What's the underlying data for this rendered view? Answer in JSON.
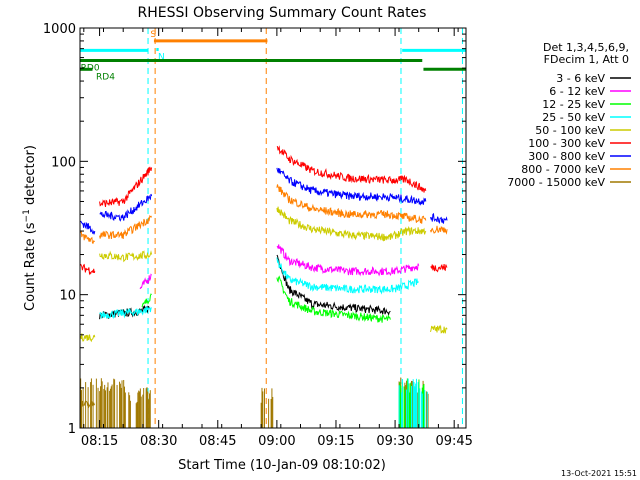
{
  "chart_data": {
    "type": "line",
    "title": "RHESSI Observing Summary Count Rates",
    "xlabel": "Start Time (10-Jan-09 08:10:02)",
    "ylabel_pre": "Count Rate (s",
    "ylabel_sup": "−1",
    "ylabel_mid": " detector",
    "ylabel_post": ")",
    "x_range_min": [
      8.1672,
      9.8
    ],
    "y_range": [
      1,
      1000
    ],
    "y_scale": "log",
    "x_ticks": [
      {
        "t": 8.25,
        "label": "08:15"
      },
      {
        "t": 8.5,
        "label": "08:30"
      },
      {
        "t": 8.75,
        "label": "08:45"
      },
      {
        "t": 9.0,
        "label": "09:00"
      },
      {
        "t": 9.25,
        "label": "09:15"
      },
      {
        "t": 9.5,
        "label": "09:30"
      },
      {
        "t": 9.75,
        "label": "09:45"
      }
    ],
    "y_ticks": [
      {
        "v": 1,
        "label": "1"
      },
      {
        "v": 10,
        "label": "10"
      },
      {
        "v": 100,
        "label": "100"
      },
      {
        "v": 1000,
        "label": "1000"
      }
    ],
    "legend_header": [
      "Det 1,3,4,5,6,9,",
      "FDecim 1, Att 0"
    ],
    "legend_placement": "right",
    "footer_date": "13-Oct-2021 15:51",
    "series": [
      {
        "name": "3 - 6 keV",
        "color": "#000000",
        "segs": [
          [
            [
              8.25,
              7
            ],
            [
              8.43,
              7.5
            ],
            [
              8.46,
              8
            ]
          ],
          [
            [
              9.0,
              20
            ],
            [
              9.05,
              11
            ],
            [
              9.15,
              8.5
            ],
            [
              9.3,
              8
            ],
            [
              9.48,
              7.5
            ]
          ]
        ]
      },
      {
        "name": "6 - 12 keV",
        "color": "#ff00ff",
        "segs": [
          [
            [
              8.42,
              11
            ],
            [
              8.47,
              14
            ]
          ],
          [
            [
              9.0,
              24
            ],
            [
              9.05,
              18
            ],
            [
              9.15,
              16
            ],
            [
              9.3,
              15
            ],
            [
              9.5,
              15
            ],
            [
              9.6,
              16.5
            ]
          ]
        ]
      },
      {
        "name": "12 - 25 keV",
        "color": "#00ff00",
        "segs": [
          [
            [
              8.43,
              8
            ],
            [
              8.47,
              10
            ]
          ],
          [
            [
              9.0,
              14
            ],
            [
              9.05,
              9
            ],
            [
              9.15,
              7.5
            ],
            [
              9.3,
              7
            ],
            [
              9.48,
              6.5
            ]
          ]
        ]
      },
      {
        "name": "25 - 50 keV",
        "color": "#00ffff",
        "segs": [
          [
            [
              8.25,
              7
            ],
            [
              8.43,
              7.5
            ],
            [
              8.47,
              8
            ]
          ],
          [
            [
              9.0,
              18
            ],
            [
              9.05,
              13
            ],
            [
              9.15,
              11.5
            ],
            [
              9.3,
              11
            ],
            [
              9.5,
              11
            ],
            [
              9.6,
              12.5
            ]
          ]
        ]
      },
      {
        "name": "50 - 100 keV",
        "color": "#cccc00",
        "segs": [
          [
            [
              8.17,
              4.8
            ],
            [
              8.23,
              4.8
            ]
          ],
          [
            [
              8.25,
              20
            ],
            [
              8.35,
              19
            ],
            [
              8.47,
              20
            ]
          ],
          [
            [
              9.0,
              45
            ],
            [
              9.05,
              36
            ],
            [
              9.15,
              31
            ],
            [
              9.3,
              28
            ],
            [
              9.48,
              27
            ],
            [
              9.55,
              30
            ],
            [
              9.63,
              30
            ]
          ],
          [
            [
              9.65,
              5.5
            ],
            [
              9.72,
              5.5
            ]
          ]
        ]
      },
      {
        "name": "100 - 300 keV",
        "color": "#ff0000",
        "segs": [
          [
            [
              8.17,
              16
            ],
            [
              8.23,
              15
            ]
          ],
          [
            [
              8.25,
              48
            ],
            [
              8.35,
              50
            ],
            [
              8.47,
              90
            ]
          ],
          [
            [
              9.0,
              130
            ],
            [
              9.05,
              105
            ],
            [
              9.15,
              85
            ],
            [
              9.3,
              75
            ],
            [
              9.48,
              72
            ],
            [
              9.55,
              73
            ],
            [
              9.63,
              60
            ]
          ],
          [
            [
              9.65,
              16
            ],
            [
              9.72,
              16
            ]
          ]
        ]
      },
      {
        "name": "300 - 800 keV",
        "color": "#0000ff",
        "segs": [
          [
            [
              8.17,
              35
            ],
            [
              8.23,
              30
            ]
          ],
          [
            [
              8.25,
              40
            ],
            [
              8.35,
              38
            ],
            [
              8.47,
              55
            ]
          ],
          [
            [
              9.0,
              88
            ],
            [
              9.05,
              72
            ],
            [
              9.15,
              60
            ],
            [
              9.3,
              55
            ],
            [
              9.48,
              54
            ],
            [
              9.55,
              52
            ],
            [
              9.63,
              50
            ]
          ],
          [
            [
              9.65,
              38
            ],
            [
              9.72,
              36
            ]
          ]
        ]
      },
      {
        "name": "800 - 7000 keV",
        "color": "#ff8000",
        "segs": [
          [
            [
              8.17,
              28
            ],
            [
              8.23,
              25
            ]
          ],
          [
            [
              8.25,
              28
            ],
            [
              8.35,
              28
            ],
            [
              8.47,
              38
            ]
          ],
          [
            [
              9.0,
              65
            ],
            [
              9.05,
              52
            ],
            [
              9.15,
              44
            ],
            [
              9.3,
              40
            ],
            [
              9.48,
              40
            ],
            [
              9.55,
              38
            ],
            [
              9.63,
              36
            ]
          ],
          [
            [
              9.65,
              31
            ],
            [
              9.72,
              31
            ]
          ]
        ]
      },
      {
        "name": "7000 - 15000 keV",
        "color": "#a07800",
        "segs": [
          [
            [
              8.17,
              1.5
            ],
            [
              8.23,
              1.5
            ]
          ]
        ]
      }
    ],
    "spikes": [
      {
        "color": "#a07800",
        "t0": 8.17,
        "t1": 8.36,
        "v": 2
      },
      {
        "color": "#a07800",
        "t0": 8.37,
        "t1": 8.47,
        "v": 1.7
      },
      {
        "color": "#a07800",
        "t0": 8.93,
        "t1": 8.985,
        "v": 1.7
      },
      {
        "color": "#a07800",
        "t0": 9.51,
        "t1": 9.64,
        "v": 2
      },
      {
        "color": "#00ff00",
        "t0": 9.51,
        "t1": 9.64,
        "v": 2
      },
      {
        "color": "#00ffff",
        "t0": 9.51,
        "t1": 9.64,
        "v": 2
      }
    ],
    "flag_bars": [
      {
        "color": "#00ffff",
        "v": 680,
        "t0": 8.1672,
        "t1": 8.455,
        "label": "",
        "dash_at": 8.455
      },
      {
        "color": "#ff8000",
        "v": 800,
        "t0": 8.48,
        "t1": 8.96,
        "label": "S",
        "label_t": 8.465,
        "dash_at": 8.48,
        "dash_end": 8.96
      },
      {
        "color": "#00ffff",
        "v": 690,
        "t0": 8.49,
        "t1": 8.5,
        "label": "N",
        "label_t": 8.497
      },
      {
        "color": "#008000",
        "v": 570,
        "t0": 8.1672,
        "t1": 9.615,
        "label": "RD0",
        "label_t": 8.17
      },
      {
        "color": "#008000",
        "v": 490,
        "t0": 8.1672,
        "t1": 8.22,
        "label": "RD4",
        "label_t": 8.235
      },
      {
        "color": "#00ffff",
        "v": 680,
        "t0": 9.53,
        "t1": 9.8,
        "label": "",
        "dash_at": 9.53,
        "dash_end": 9.78
      },
      {
        "color": "#008000",
        "v": 490,
        "t0": 9.62,
        "t1": 9.8,
        "label": ""
      }
    ],
    "vertical_lines": [
      {
        "color": "#00ffff",
        "t": 8.455
      },
      {
        "color": "#ff8000",
        "t": 8.485
      },
      {
        "color": "#ff8000",
        "t": 8.955
      },
      {
        "color": "#00ffff",
        "t": 9.525
      },
      {
        "color": "#00ffff",
        "t": 9.785
      }
    ]
  }
}
